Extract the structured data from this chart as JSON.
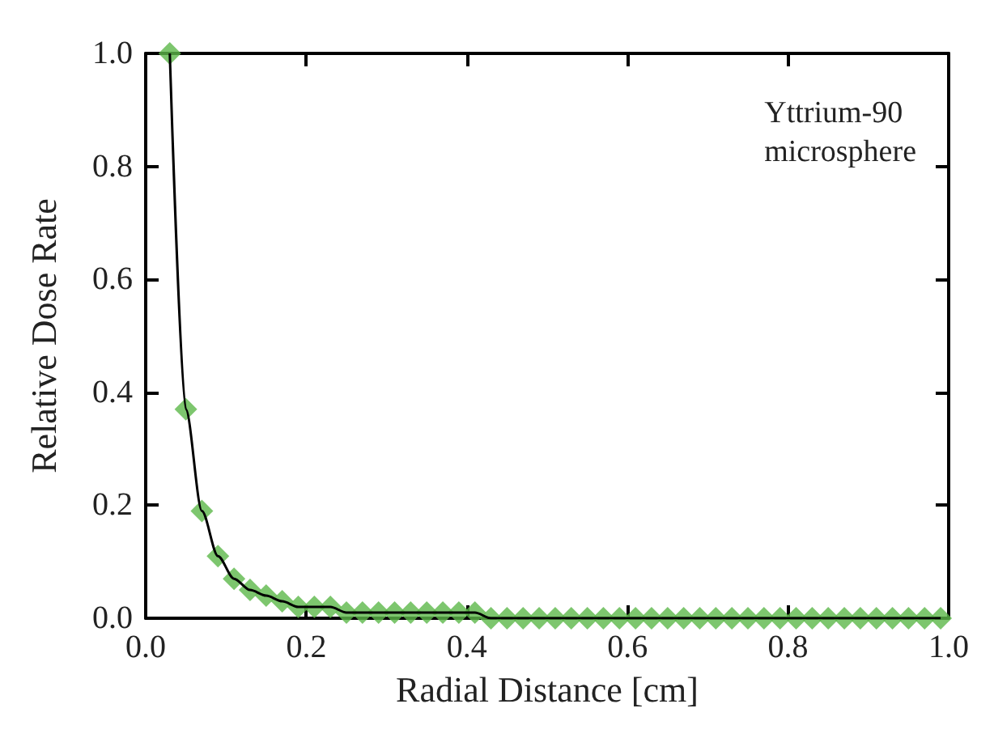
{
  "chart_data": {
    "type": "line",
    "xlabel": "Radial Distance [cm]",
    "ylabel": "Relative Dose Rate",
    "annotations": [
      "Yttrium-90\nmicrosphere"
    ],
    "x": [
      0.03,
      0.05,
      0.07,
      0.09,
      0.11,
      0.13,
      0.15,
      0.17,
      0.19,
      0.21,
      0.23,
      0.25,
      0.27,
      0.29,
      0.31,
      0.33,
      0.35,
      0.37,
      0.39,
      0.41,
      0.43,
      0.45,
      0.47,
      0.49,
      0.51,
      0.53,
      0.55,
      0.57,
      0.59,
      0.61,
      0.63,
      0.65,
      0.67,
      0.69,
      0.71,
      0.73,
      0.75,
      0.77,
      0.79,
      0.81,
      0.83,
      0.85,
      0.87,
      0.89,
      0.91,
      0.93,
      0.95,
      0.97,
      0.99
    ],
    "series": [
      {
        "type": "line",
        "color": "#000000",
        "marker": "none",
        "values": [
          1.0,
          0.37,
          0.19,
          0.11,
          0.07,
          0.05,
          0.04,
          0.03,
          0.02,
          0.02,
          0.02,
          0.01,
          0.01,
          0.01,
          0.01,
          0.01,
          0.01,
          0.01,
          0.01,
          0.01,
          0,
          0,
          0,
          0,
          0,
          0,
          0,
          0,
          0,
          0,
          0,
          0,
          0,
          0,
          0,
          0,
          0,
          0,
          0,
          0,
          0,
          0,
          0,
          0,
          0,
          0,
          0,
          0,
          0
        ]
      },
      {
        "type": "scatter",
        "color": "#5cb84a",
        "marker": "diamond",
        "values": [
          1.0,
          0.37,
          0.19,
          0.11,
          0.07,
          0.05,
          0.04,
          0.03,
          0.02,
          0.02,
          0.02,
          0.01,
          0.01,
          0.01,
          0.01,
          0.01,
          0.01,
          0.01,
          0.01,
          0.01,
          0,
          0,
          0,
          0,
          0,
          0,
          0,
          0,
          0,
          0,
          0,
          0,
          0,
          0,
          0,
          0,
          0,
          0,
          0,
          0,
          0,
          0,
          0,
          0,
          0,
          0,
          0,
          0,
          0
        ]
      }
    ],
    "xlim": [
      0,
      1
    ],
    "xticks": [
      {
        "value": 0,
        "label": "0.0"
      },
      {
        "value": 0.2,
        "label": "0.2"
      },
      {
        "value": 0.4,
        "label": "0.4"
      },
      {
        "value": 0.6,
        "label": "0.6"
      },
      {
        "value": 0.8,
        "label": "0.8"
      },
      {
        "value": 1,
        "label": "1.0"
      }
    ],
    "ylim": [
      0,
      1
    ],
    "yticks": [
      {
        "value": 0,
        "label": "0.0"
      },
      {
        "value": 0.2,
        "label": "0.2"
      },
      {
        "value": 0.4,
        "label": "0.4"
      },
      {
        "value": 0.6,
        "label": "0.6"
      },
      {
        "value": 0.8,
        "label": "0.8"
      },
      {
        "value": 1,
        "label": "1.0"
      }
    ]
  }
}
